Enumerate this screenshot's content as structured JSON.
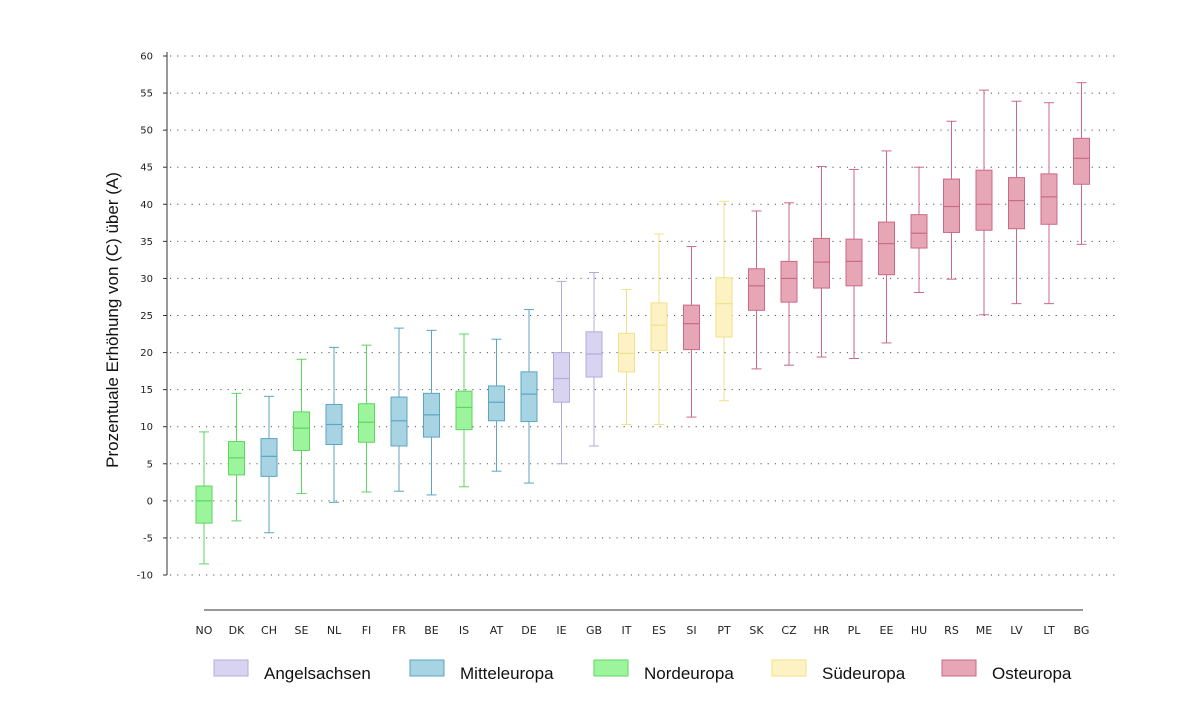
{
  "chart_data": {
    "type": "box",
    "ylabel": "Prozentuale Erhöhung von (C) über (A)",
    "ylim": [
      -10,
      60
    ],
    "yticks": [
      -10,
      -5,
      0,
      5,
      10,
      15,
      20,
      25,
      30,
      35,
      40,
      45,
      50,
      55,
      60
    ],
    "grid": "horizontal-dotted",
    "legend_position": "bottom",
    "regions": [
      {
        "name": "Angelsachsen",
        "fill": "#d8d3f0",
        "stroke": "#b3acd9"
      },
      {
        "name": "Mitteleuropa",
        "fill": "#a8d3e3",
        "stroke": "#5aa6c4"
      },
      {
        "name": "Nordeuropa",
        "fill": "#9cf59c",
        "stroke": "#5ed65e"
      },
      {
        "name": "Südeuropa",
        "fill": "#fdf2c4",
        "stroke": "#f2e08a"
      },
      {
        "name": "Osteuropa",
        "fill": "#e7a6b6",
        "stroke": "#c96a86"
      }
    ],
    "boxes": [
      {
        "label": "NO",
        "region": "Nordeuropa",
        "min": -8.5,
        "q1": -3,
        "median": 0,
        "q3": 2,
        "max": 9.3
      },
      {
        "label": "DK",
        "region": "Nordeuropa",
        "min": -2.7,
        "q1": 3.5,
        "median": 5.8,
        "q3": 8,
        "max": 14.5
      },
      {
        "label": "CH",
        "region": "Mitteleuropa",
        "min": -4.3,
        "q1": 3.3,
        "median": 6,
        "q3": 8.4,
        "max": 14.1
      },
      {
        "label": "SE",
        "region": "Nordeuropa",
        "min": 1,
        "q1": 6.8,
        "median": 9.8,
        "q3": 12,
        "max": 19.1
      },
      {
        "label": "NL",
        "region": "Mitteleuropa",
        "min": -0.2,
        "q1": 7.6,
        "median": 10.3,
        "q3": 13,
        "max": 20.7
      },
      {
        "label": "FI",
        "region": "Nordeuropa",
        "min": 1.2,
        "q1": 7.9,
        "median": 10.6,
        "q3": 13.1,
        "max": 21
      },
      {
        "label": "FR",
        "region": "Mitteleuropa",
        "min": 1.3,
        "q1": 7.4,
        "median": 10.8,
        "q3": 14,
        "max": 23.3
      },
      {
        "label": "BE",
        "region": "Mitteleuropa",
        "min": 0.8,
        "q1": 8.6,
        "median": 11.6,
        "q3": 14.5,
        "max": 23
      },
      {
        "label": "IS",
        "region": "Nordeuropa",
        "min": 1.9,
        "q1": 9.6,
        "median": 12.6,
        "q3": 14.8,
        "max": 22.5
      },
      {
        "label": "AT",
        "region": "Mitteleuropa",
        "min": 4,
        "q1": 10.8,
        "median": 13.3,
        "q3": 15.5,
        "max": 21.8
      },
      {
        "label": "DE",
        "region": "Mitteleuropa",
        "min": 2.4,
        "q1": 10.7,
        "median": 14.4,
        "q3": 17.4,
        "max": 25.8
      },
      {
        "label": "IE",
        "region": "Angelsachsen",
        "min": 5,
        "q1": 13.3,
        "median": 16.5,
        "q3": 20,
        "max": 29.6
      },
      {
        "label": "GB",
        "region": "Angelsachsen",
        "min": 7.4,
        "q1": 16.7,
        "median": 19.8,
        "q3": 22.8,
        "max": 30.8
      },
      {
        "label": "IT",
        "region": "Südeuropa",
        "min": 10.3,
        "q1": 17.4,
        "median": 19.9,
        "q3": 22.6,
        "max": 28.5
      },
      {
        "label": "ES",
        "region": "Südeuropa",
        "min": 10.3,
        "q1": 20.3,
        "median": 23.7,
        "q3": 26.7,
        "max": 36
      },
      {
        "label": "SI",
        "region": "Osteuropa",
        "min": 11.3,
        "q1": 20.4,
        "median": 23.9,
        "q3": 26.4,
        "max": 34.3
      },
      {
        "label": "PT",
        "region": "Südeuropa",
        "min": 13.5,
        "q1": 22.1,
        "median": 26.6,
        "q3": 30.1,
        "max": 40.4
      },
      {
        "label": "SK",
        "region": "Osteuropa",
        "min": 17.8,
        "q1": 25.7,
        "median": 29,
        "q3": 31.3,
        "max": 39.1
      },
      {
        "label": "CZ",
        "region": "Osteuropa",
        "min": 18.3,
        "q1": 26.8,
        "median": 30,
        "q3": 32.3,
        "max": 40.2
      },
      {
        "label": "HR",
        "region": "Osteuropa",
        "min": 19.4,
        "q1": 28.7,
        "median": 32.2,
        "q3": 35.4,
        "max": 45.1
      },
      {
        "label": "PL",
        "region": "Osteuropa",
        "min": 19.2,
        "q1": 29,
        "median": 32.3,
        "q3": 35.3,
        "max": 44.7
      },
      {
        "label": "EE",
        "region": "Osteuropa",
        "min": 21.3,
        "q1": 30.5,
        "median": 34.7,
        "q3": 37.6,
        "max": 47.2
      },
      {
        "label": "HU",
        "region": "Osteuropa",
        "min": 28.1,
        "q1": 34.1,
        "median": 36.1,
        "q3": 38.6,
        "max": 45
      },
      {
        "label": "RS",
        "region": "Osteuropa",
        "min": 29.9,
        "q1": 36.2,
        "median": 39.7,
        "q3": 43.4,
        "max": 51.2
      },
      {
        "label": "ME",
        "region": "Osteuropa",
        "min": 25.1,
        "q1": 36.5,
        "median": 40,
        "q3": 44.6,
        "max": 55.4
      },
      {
        "label": "LV",
        "region": "Osteuropa",
        "min": 26.6,
        "q1": 36.7,
        "median": 40.5,
        "q3": 43.6,
        "max": 53.9
      },
      {
        "label": "LT",
        "region": "Osteuropa",
        "min": 26.6,
        "q1": 37.3,
        "median": 41,
        "q3": 44.1,
        "max": 53.7
      },
      {
        "label": "BG",
        "region": "Osteuropa",
        "min": 34.6,
        "q1": 42.7,
        "median": 46.2,
        "q3": 48.9,
        "max": 56.4
      }
    ]
  }
}
